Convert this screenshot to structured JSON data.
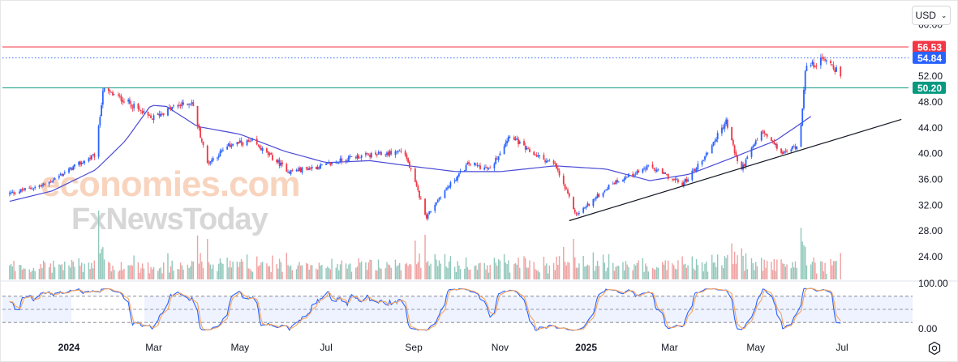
{
  "toolbar": {
    "currency_label": "USD",
    "chevron_icon": "chevron-down-icon",
    "settings_icon": "gear-icon"
  },
  "watermark": {
    "line1": "economies.com",
    "line2": "FxNewsToday"
  },
  "chart_data": {
    "type": "candlestick",
    "price_axis": {
      "ticks": [
        "60.00",
        "52.00",
        "48.00",
        "44.00",
        "40.00",
        "36.00",
        "32.00",
        "28.00",
        "24.00"
      ],
      "range": [
        20.5,
        63.3
      ]
    },
    "time_axis": {
      "labels": [
        "2024",
        "Mar",
        "May",
        "Jul",
        "Sep",
        "Nov",
        "2025",
        "Mar",
        "May",
        "Jul"
      ],
      "bold": [
        "2024",
        "2025"
      ]
    },
    "price_labels": [
      {
        "label": "56.53",
        "value": 56.53,
        "color": "#f23645"
      },
      {
        "label": "54.84",
        "value": 54.84,
        "color": "#2962ff"
      },
      {
        "label": "50.20",
        "value": 50.2,
        "color": "#089981"
      }
    ],
    "horizontal_lines": [
      {
        "name": "resistance",
        "value": 56.53,
        "color": "#f23645",
        "style": "solid"
      },
      {
        "name": "current-price",
        "value": 54.84,
        "color": "#2962ff",
        "style": "dotted"
      },
      {
        "name": "support",
        "value": 50.2,
        "color": "#089981",
        "style": "solid"
      }
    ],
    "trendline": {
      "from": {
        "date": "2024-12-20",
        "value": 29.6
      },
      "to": {
        "date": "2025-08-12",
        "value": 45.3
      },
      "color": "#131722"
    },
    "moving_average_key_points": [
      [
        "2023-11-20",
        32.6
      ],
      [
        "2023-12-20",
        34.2
      ],
      [
        "2024-01-20",
        37.5
      ],
      [
        "2024-02-10",
        42.0
      ],
      [
        "2024-02-28",
        47.5
      ],
      [
        "2024-03-10",
        47.3
      ],
      [
        "2024-04-01",
        44.2
      ],
      [
        "2024-05-01",
        43.0
      ],
      [
        "2024-06-01",
        40.4
      ],
      [
        "2024-07-01",
        38.6
      ],
      [
        "2024-08-01",
        38.9
      ],
      [
        "2024-09-01",
        38.0
      ],
      [
        "2024-10-01",
        37.2
      ],
      [
        "2024-11-01",
        37.2
      ],
      [
        "2024-12-10",
        38.1
      ],
      [
        "2025-01-15",
        37.6
      ],
      [
        "2025-02-15",
        35.8
      ],
      [
        "2025-03-15",
        36.8
      ],
      [
        "2025-04-15",
        39.4
      ],
      [
        "2025-05-15",
        42.0
      ],
      [
        "2025-06-10",
        45.9
      ]
    ],
    "price_key_points": [
      [
        "2023-11-20",
        33.8
      ],
      [
        "2023-12-15",
        35.2
      ],
      [
        "2024-01-05",
        38.0
      ],
      [
        "2024-01-20",
        39.8
      ],
      [
        "2024-01-25",
        49.9
      ],
      [
        "2024-02-10",
        48.2
      ],
      [
        "2024-02-28",
        45.4
      ],
      [
        "2024-03-15",
        47.2
      ],
      [
        "2024-03-28",
        48.0
      ],
      [
        "2024-04-08",
        38.5
      ],
      [
        "2024-04-25",
        41.5
      ],
      [
        "2024-05-10",
        41.8
      ],
      [
        "2024-06-05",
        37.2
      ],
      [
        "2024-07-01",
        38.2
      ],
      [
        "2024-07-20",
        39.5
      ],
      [
        "2024-08-10",
        39.9
      ],
      [
        "2024-08-25",
        40.5
      ],
      [
        "2024-09-10",
        30.2
      ],
      [
        "2024-09-20",
        33.5
      ],
      [
        "2024-10-10",
        38.5
      ],
      [
        "2024-10-25",
        37.5
      ],
      [
        "2024-11-08",
        43.0
      ],
      [
        "2024-11-20",
        40.5
      ],
      [
        "2024-12-10",
        38.2
      ],
      [
        "2024-12-25",
        30.5
      ],
      [
        "2025-01-20",
        35.5
      ],
      [
        "2025-02-15",
        38.0
      ],
      [
        "2025-03-10",
        35.2
      ],
      [
        "2025-03-25",
        39.2
      ],
      [
        "2025-04-10",
        45.0
      ],
      [
        "2025-04-20",
        37.2
      ],
      [
        "2025-05-05",
        43.5
      ],
      [
        "2025-05-20",
        40.0
      ],
      [
        "2025-06-01",
        41.5
      ],
      [
        "2025-06-05",
        53.2
      ],
      [
        "2025-06-20",
        54.8
      ],
      [
        "2025-06-30",
        52.1
      ]
    ],
    "oscillator": {
      "type": "stochastic",
      "levels": [
        "100.00",
        "0.00"
      ],
      "range": [
        0,
        100
      ],
      "bands": [
        20,
        50,
        80
      ],
      "series": [
        {
          "color": "#2962ff"
        },
        {
          "color": "#f7a35c"
        }
      ]
    },
    "colors": {
      "up": "#2962ff",
      "down": "#f23645",
      "ma": "#4a4ad6",
      "volume_up": "#90c7bb",
      "volume_down": "#f0a0a0"
    }
  }
}
